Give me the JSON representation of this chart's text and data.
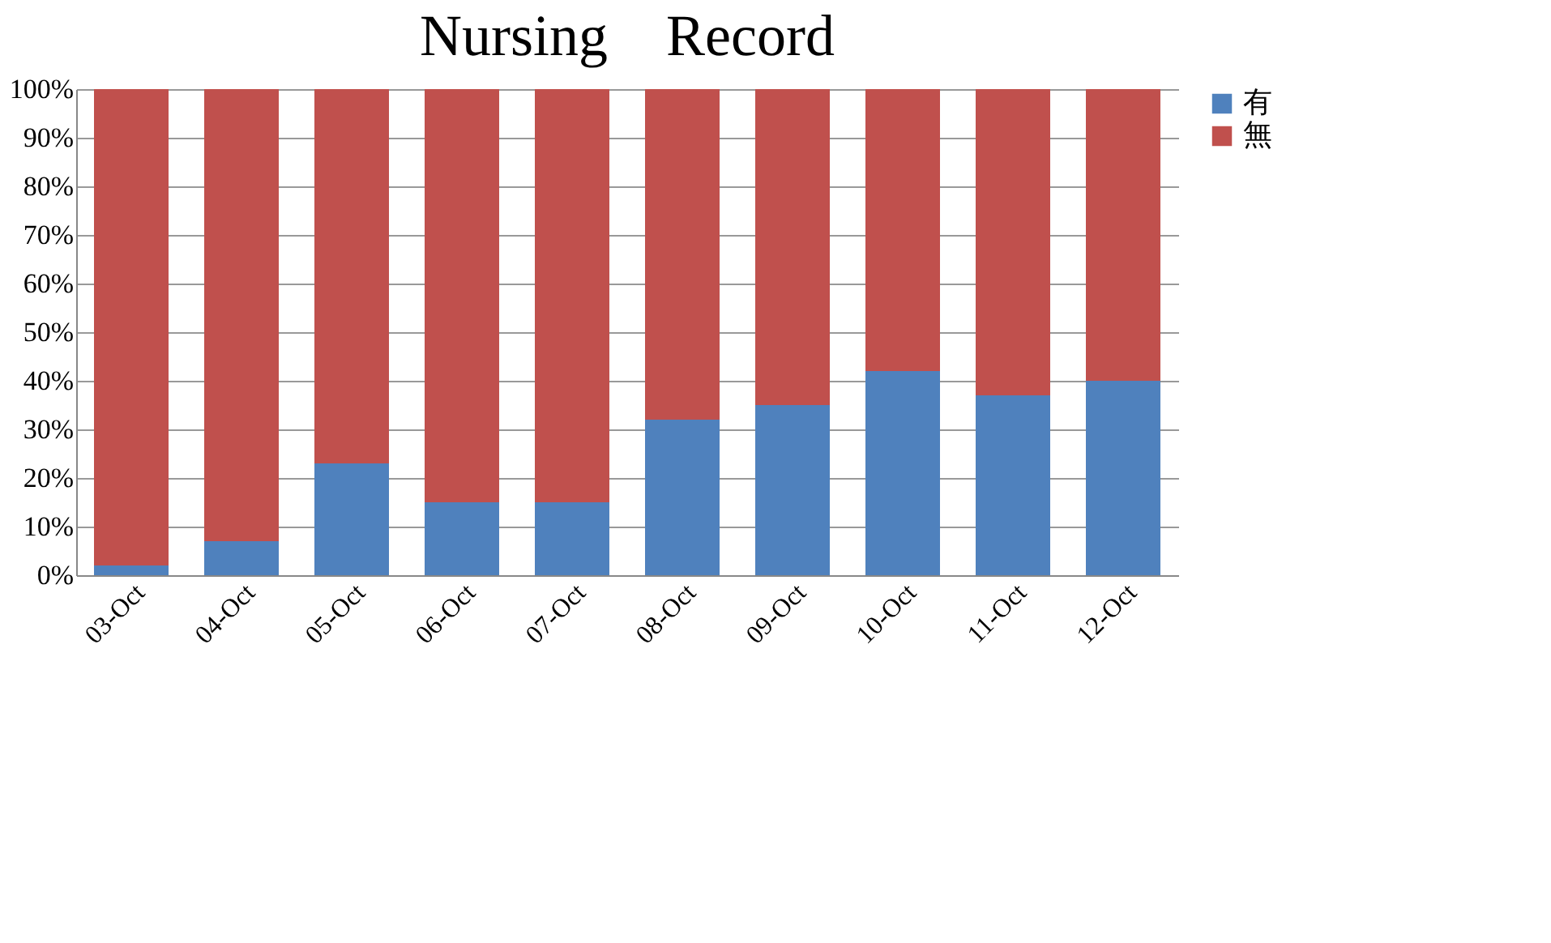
{
  "chart_data": {
    "type": "bar",
    "stacked": true,
    "title": "Nursing　Record",
    "categories": [
      "03-Oct",
      "04-Oct",
      "05-Oct",
      "06-Oct",
      "07-Oct",
      "08-Oct",
      "09-Oct",
      "10-Oct",
      "11-Oct",
      "12-Oct"
    ],
    "series": [
      {
        "name": "有",
        "color": "#4f81bd",
        "values": [
          2,
          7,
          23,
          15,
          15,
          32,
          35,
          42,
          37,
          40
        ]
      },
      {
        "name": "無",
        "color": "#c0504d",
        "values": [
          98,
          93,
          77,
          85,
          85,
          68,
          65,
          58,
          63,
          60
        ]
      }
    ],
    "ylim": [
      0,
      100
    ],
    "yticks": [
      {
        "value": 0,
        "label": "0%"
      },
      {
        "value": 10,
        "label": "10%"
      },
      {
        "value": 20,
        "label": "20%"
      },
      {
        "value": 30,
        "label": "30%"
      },
      {
        "value": 40,
        "label": "40%"
      },
      {
        "value": 50,
        "label": "50%"
      },
      {
        "value": 60,
        "label": "60%"
      },
      {
        "value": 70,
        "label": "70%"
      },
      {
        "value": 80,
        "label": "80%"
      },
      {
        "value": 90,
        "label": "90%"
      },
      {
        "value": 100,
        "label": "100%"
      }
    ],
    "grid": "y",
    "legend": "right"
  }
}
